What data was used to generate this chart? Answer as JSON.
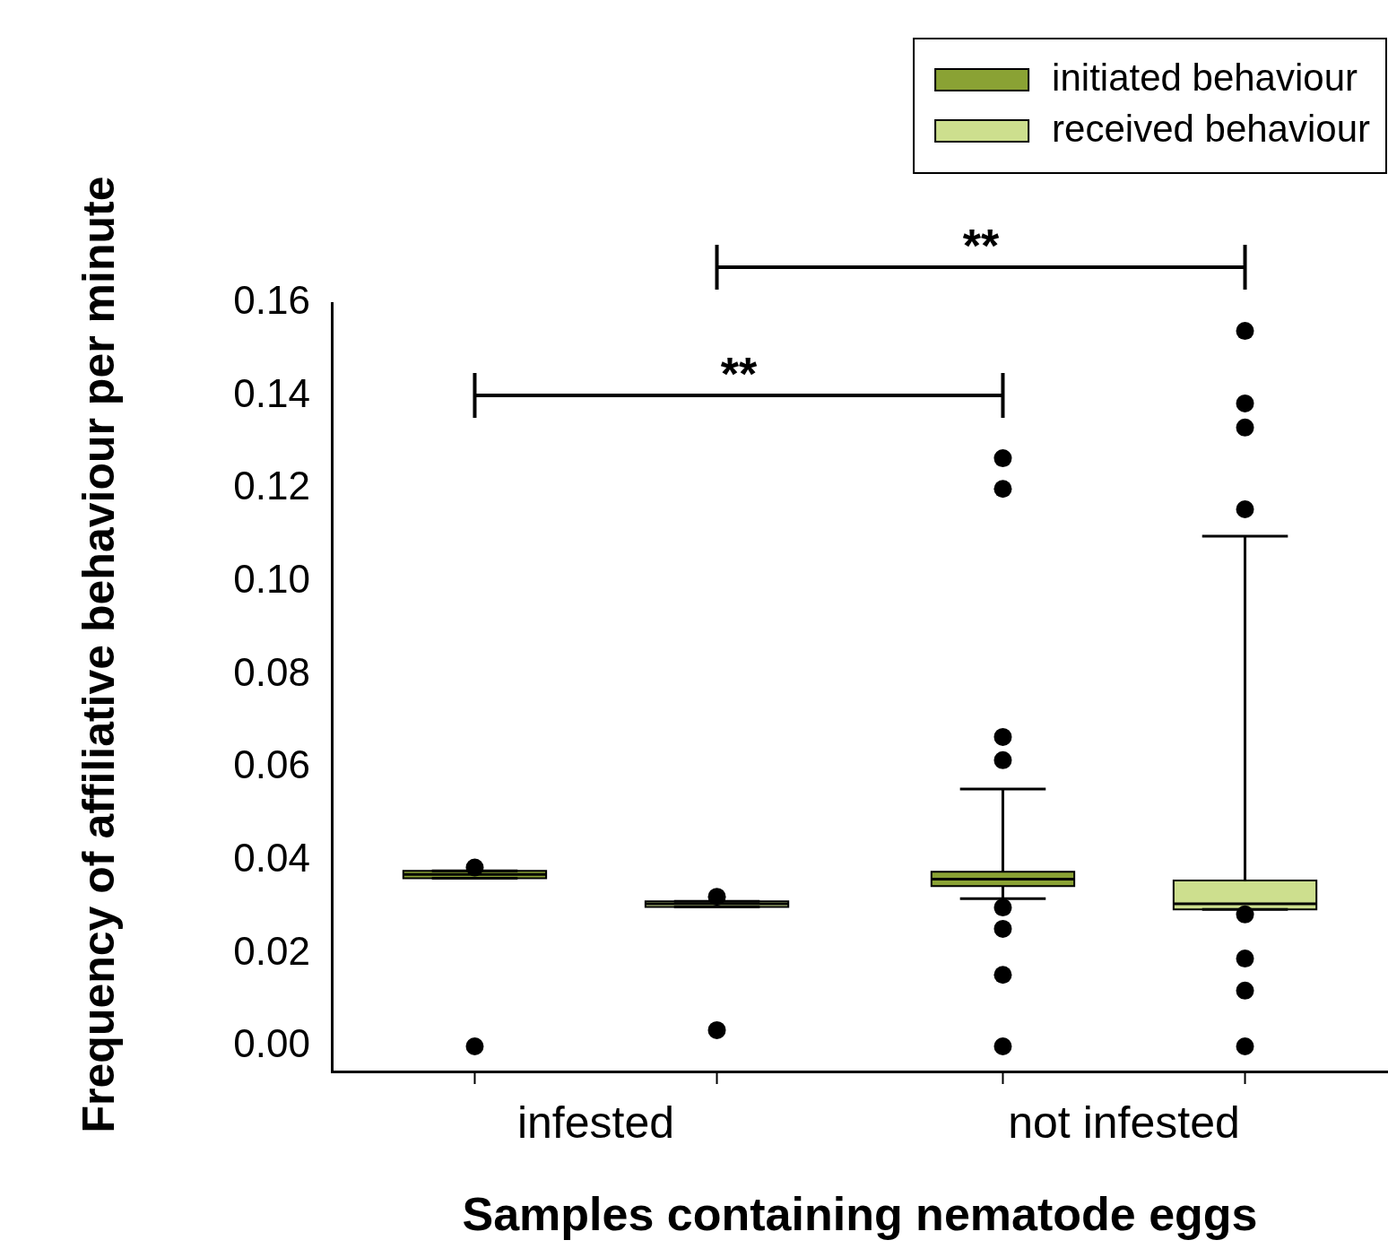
{
  "chart_data": {
    "type": "box",
    "xlabel": "Samples containing nematode eggs",
    "ylabel": "Frequency of affiliative behaviour per minute",
    "categories": [
      "infested",
      "not infested"
    ],
    "series": [
      {
        "name": "initiated behaviour",
        "color": "#8aa234",
        "boxes": [
          {
            "low": 0.0362,
            "q1": 0.0362,
            "median": 0.037,
            "q3": 0.0378,
            "high": 0.0378,
            "outliers": [
              0.0385,
              0
            ]
          },
          {
            "low": 0.0318,
            "q1": 0.0345,
            "median": 0.036,
            "q3": 0.0376,
            "high": 0.0554,
            "outliers": [
              0.1266,
              0.12,
              0.0666,
              0.0616,
              0.0299,
              0.0253,
              0.0154,
              0
            ]
          }
        ]
      },
      {
        "name": "received behaviour",
        "color": "#cddf8e",
        "boxes": [
          {
            "low": 0.03,
            "q1": 0.03,
            "median": 0.0307,
            "q3": 0.0312,
            "high": 0.0312,
            "outliers": [
              0.0322,
              0.0035
            ]
          },
          {
            "low": 0.0295,
            "q1": 0.0295,
            "median": 0.0307,
            "q3": 0.0357,
            "high": 0.1098,
            "outliers": [
              0.154,
              0.1384,
              0.1332,
              0.1156,
              0.0284,
              0.0189,
              0.012,
              0
            ]
          }
        ]
      }
    ],
    "ylim": [
      -0.0054,
      0.16
    ],
    "yticks": [
      {
        "value": 0,
        "label": "0.00"
      },
      {
        "value": 0.02,
        "label": "0.02"
      },
      {
        "value": 0.04,
        "label": "0.04"
      },
      {
        "value": 0.06,
        "label": "0.06"
      },
      {
        "value": 0.08,
        "label": "0.08"
      },
      {
        "value": 0.1,
        "label": "0.10"
      },
      {
        "value": 0.12,
        "label": "0.12"
      },
      {
        "value": 0.14,
        "label": "0.14"
      },
      {
        "value": 0.16,
        "label": "0.16"
      }
    ],
    "annotations": [
      "**",
      "**"
    ],
    "legend": "top right"
  }
}
